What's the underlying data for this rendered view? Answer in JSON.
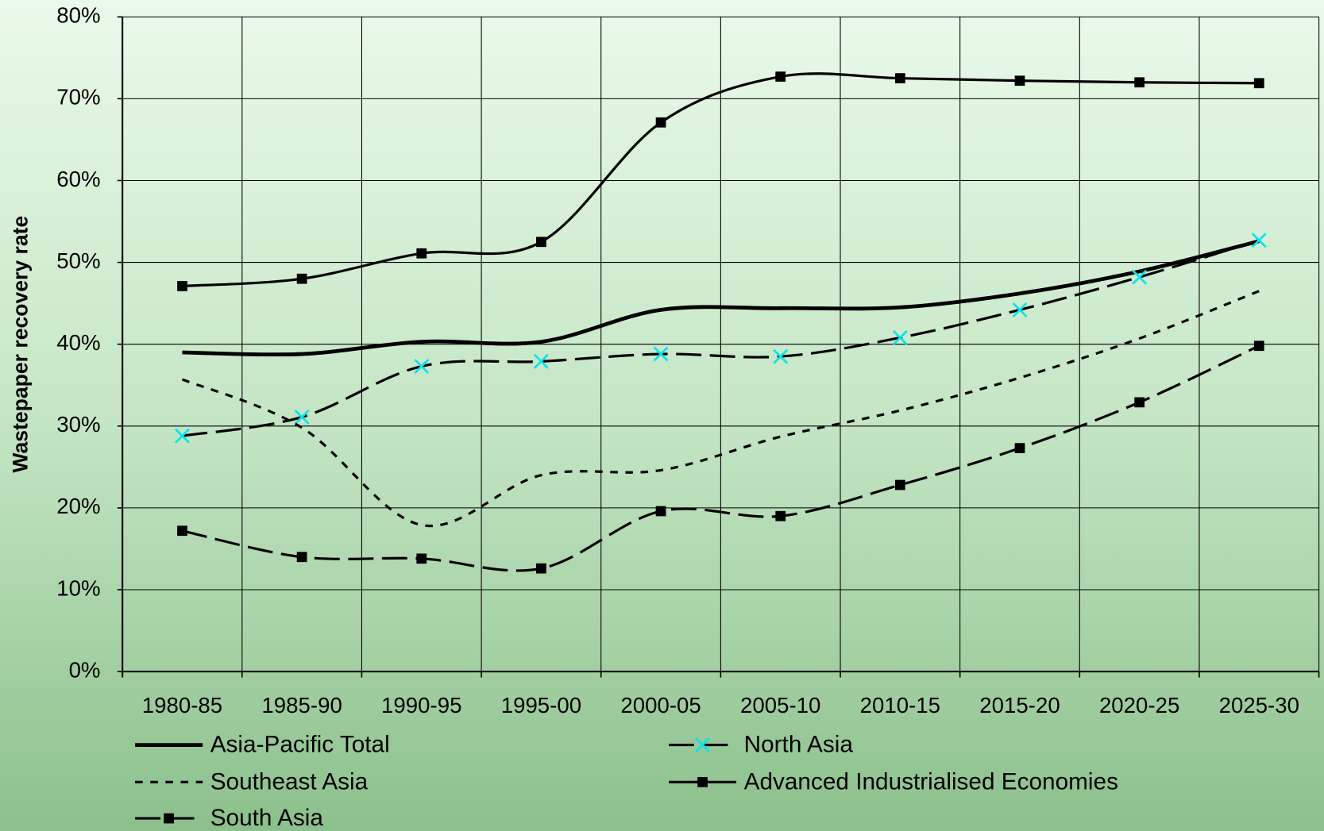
{
  "chart_data": {
    "type": "line",
    "y_label": "Wastepaper recovery rate",
    "categories": [
      "1980-85",
      "1985-90",
      "1990-95",
      "1995-00",
      "2000-05",
      "2005-10",
      "2010-15",
      "2015-20",
      "2020-25",
      "2025-30"
    ],
    "series": [
      {
        "name": "Asia-Pacific Total",
        "color": "#000000",
        "line_style": "solid-thick",
        "values": [
          39,
          38.8,
          40.3,
          40.3,
          44.2,
          44.4,
          44.5,
          46.2,
          48.9,
          52.6
        ]
      },
      {
        "name": "North Asia",
        "color": "#000000",
        "line_style": "dashed",
        "marker": "x",
        "marker_color": "#00e5ee",
        "values": [
          28.8,
          31.1,
          37.3,
          37.9,
          38.8,
          38.5,
          40.8,
          44.2,
          48.2,
          52.7
        ]
      },
      {
        "name": "Southeast Asia",
        "color": "#000000",
        "line_style": "dotted",
        "values": [
          35.7,
          29.8,
          17.9,
          24.0,
          24.6,
          28.7,
          31.9,
          35.9,
          40.7,
          46.5
        ]
      },
      {
        "name": "Advanced Industrialised Economies",
        "color": "#000000",
        "line_style": "solid",
        "marker": "square",
        "marker_color": "#000000",
        "values": [
          47.1,
          48.0,
          51.1,
          52.5,
          67.1,
          72.7,
          72.5,
          72.2,
          72.0,
          71.9
        ]
      },
      {
        "name": "South Asia",
        "color": "#000000",
        "line_style": "dashed",
        "marker": "square",
        "marker_color": "#000000",
        "values": [
          17.2,
          14.0,
          13.8,
          12.6,
          19.6,
          19.0,
          22.8,
          27.3,
          32.9,
          39.8
        ]
      }
    ],
    "ylim": [
      0,
      80
    ],
    "yticks": [
      {
        "value": 0,
        "label": "0%"
      },
      {
        "value": 10,
        "label": "10%"
      },
      {
        "value": 20,
        "label": "20%"
      },
      {
        "value": 30,
        "label": "30%"
      },
      {
        "value": 40,
        "label": "40%"
      },
      {
        "value": 50,
        "label": "50%"
      },
      {
        "value": 60,
        "label": "60%"
      },
      {
        "value": 70,
        "label": "70%"
      },
      {
        "value": 80,
        "label": "80%"
      }
    ],
    "grid": true,
    "legend": "bottom"
  }
}
